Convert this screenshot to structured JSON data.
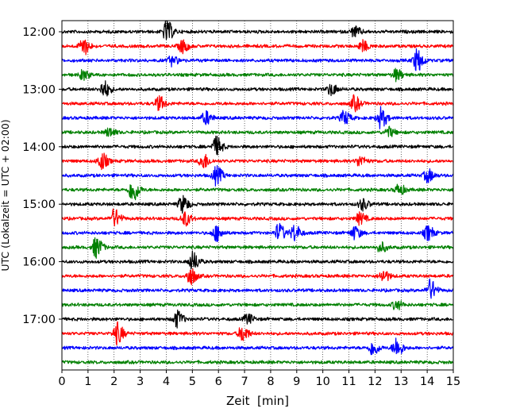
{
  "chart_data": {
    "type": "line",
    "title": "",
    "xlabel": "Zeit  [min]",
    "ylabel": "UTC (Lokalzeit = UTC + 02:00)",
    "xlim": [
      0,
      15
    ],
    "x_ticks": [
      0,
      1,
      2,
      3,
      4,
      5,
      6,
      7,
      8,
      9,
      10,
      11,
      12,
      13,
      14,
      15
    ],
    "y_ticks": [
      {
        "label": "12:00",
        "trace": 0
      },
      {
        "label": "13:00",
        "trace": 4
      },
      {
        "label": "14:00",
        "trace": 8
      },
      {
        "label": "15:00",
        "trace": 12
      },
      {
        "label": "16:00",
        "trace": 16
      },
      {
        "label": "17:00",
        "trace": 20
      }
    ],
    "grid": "vertical dotted lines at each minute",
    "legend": "none",
    "color_cycle": [
      "#000000",
      "#ff0000",
      "#0000ff",
      "#008000"
    ],
    "traces": [
      {
        "start": "12:00",
        "color": "#000000",
        "events": [
          [
            4.0,
            2.6
          ],
          [
            11.2,
            1.3
          ]
        ]
      },
      {
        "start": "12:15",
        "color": "#ff0000",
        "events": [
          [
            0.8,
            2.2
          ],
          [
            4.6,
            1.6
          ],
          [
            11.5,
            1.3
          ]
        ]
      },
      {
        "start": "12:30",
        "color": "#0000ff",
        "events": [
          [
            4.2,
            1.2
          ],
          [
            13.6,
            2.8
          ]
        ]
      },
      {
        "start": "12:45",
        "color": "#008000",
        "events": [
          [
            0.8,
            1.2
          ],
          [
            12.8,
            1.4
          ]
        ]
      },
      {
        "start": "13:00",
        "color": "#000000",
        "events": [
          [
            1.6,
            2.0
          ],
          [
            10.3,
            1.4
          ]
        ]
      },
      {
        "start": "13:15",
        "color": "#ff0000",
        "events": [
          [
            3.7,
            1.7
          ],
          [
            11.2,
            1.8
          ]
        ]
      },
      {
        "start": "13:30",
        "color": "#0000ff",
        "events": [
          [
            5.5,
            1.6
          ],
          [
            10.8,
            1.7
          ],
          [
            12.2,
            2.5
          ]
        ]
      },
      {
        "start": "13:45",
        "color": "#008000",
        "events": [
          [
            1.8,
            1.1
          ],
          [
            12.5,
            1.2
          ]
        ]
      },
      {
        "start": "14:00",
        "color": "#000000",
        "events": [
          [
            5.9,
            2.3
          ]
        ]
      },
      {
        "start": "14:15",
        "color": "#ff0000",
        "events": [
          [
            1.5,
            2.1
          ],
          [
            5.4,
            1.9
          ],
          [
            11.4,
            1.3
          ]
        ]
      },
      {
        "start": "14:30",
        "color": "#0000ff",
        "events": [
          [
            5.9,
            2.2
          ],
          [
            14.0,
            1.6
          ]
        ]
      },
      {
        "start": "14:45",
        "color": "#008000",
        "events": [
          [
            2.7,
            3.0
          ],
          [
            12.9,
            1.3
          ]
        ]
      },
      {
        "start": "15:00",
        "color": "#000000",
        "events": [
          [
            4.6,
            2.1
          ],
          [
            11.5,
            1.4
          ]
        ]
      },
      {
        "start": "15:15",
        "color": "#ff0000",
        "events": [
          [
            2.0,
            2.2
          ],
          [
            4.7,
            1.7
          ],
          [
            11.4,
            1.4
          ]
        ]
      },
      {
        "start": "15:30",
        "color": "#0000ff",
        "events": [
          [
            5.9,
            1.9
          ],
          [
            8.3,
            2.2
          ],
          [
            8.9,
            2.0
          ],
          [
            11.2,
            1.6
          ],
          [
            14.0,
            1.8
          ]
        ]
      },
      {
        "start": "15:45",
        "color": "#008000",
        "events": [
          [
            1.3,
            2.5
          ],
          [
            12.2,
            1.2
          ]
        ]
      },
      {
        "start": "16:00",
        "color": "#000000",
        "events": [
          [
            5.0,
            2.3
          ]
        ]
      },
      {
        "start": "16:15",
        "color": "#ff0000",
        "events": [
          [
            4.9,
            2.2
          ],
          [
            12.3,
            1.5
          ]
        ]
      },
      {
        "start": "16:30",
        "color": "#0000ff",
        "events": [
          [
            14.1,
            2.5
          ]
        ]
      },
      {
        "start": "16:45",
        "color": "#008000",
        "events": [
          [
            12.8,
            1.2
          ]
        ]
      },
      {
        "start": "17:00",
        "color": "#000000",
        "events": [
          [
            4.4,
            2.0
          ],
          [
            7.1,
            1.2
          ]
        ]
      },
      {
        "start": "17:15",
        "color": "#ff0000",
        "events": [
          [
            2.1,
            2.6
          ],
          [
            6.9,
            2.0
          ]
        ]
      },
      {
        "start": "17:30",
        "color": "#0000ff",
        "events": [
          [
            11.9,
            1.8
          ],
          [
            12.8,
            2.4
          ]
        ]
      },
      {
        "start": "17:45",
        "color": "#008000",
        "events": []
      }
    ]
  }
}
